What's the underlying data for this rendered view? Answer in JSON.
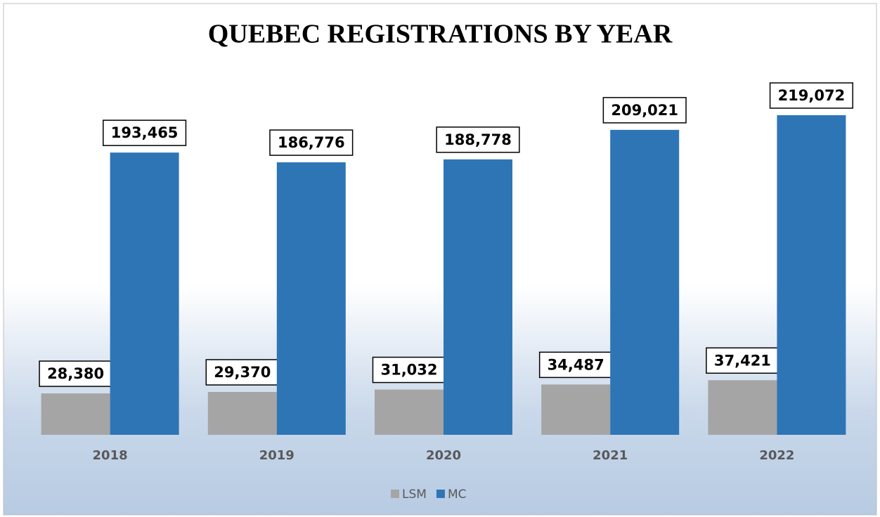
{
  "chart_data": {
    "type": "bar",
    "title": "QUEBEC REGISTRATIONS BY YEAR",
    "categories": [
      "2018",
      "2019",
      "2020",
      "2021",
      "2022"
    ],
    "series": [
      {
        "name": "LSM",
        "color": "#a5a5a5",
        "values": [
          28380,
          29370,
          31032,
          34487,
          37421
        ],
        "value_labels": [
          "28,380",
          "29,370",
          "31,032",
          "34,487",
          "37,421"
        ]
      },
      {
        "name": "MC",
        "color": "#2e75b6",
        "values": [
          193465,
          186776,
          188778,
          209021,
          219072
        ],
        "value_labels": [
          "193,465",
          "186,776",
          "188,778",
          "209,021",
          "219,072"
        ]
      }
    ],
    "legend": "bottom"
  }
}
